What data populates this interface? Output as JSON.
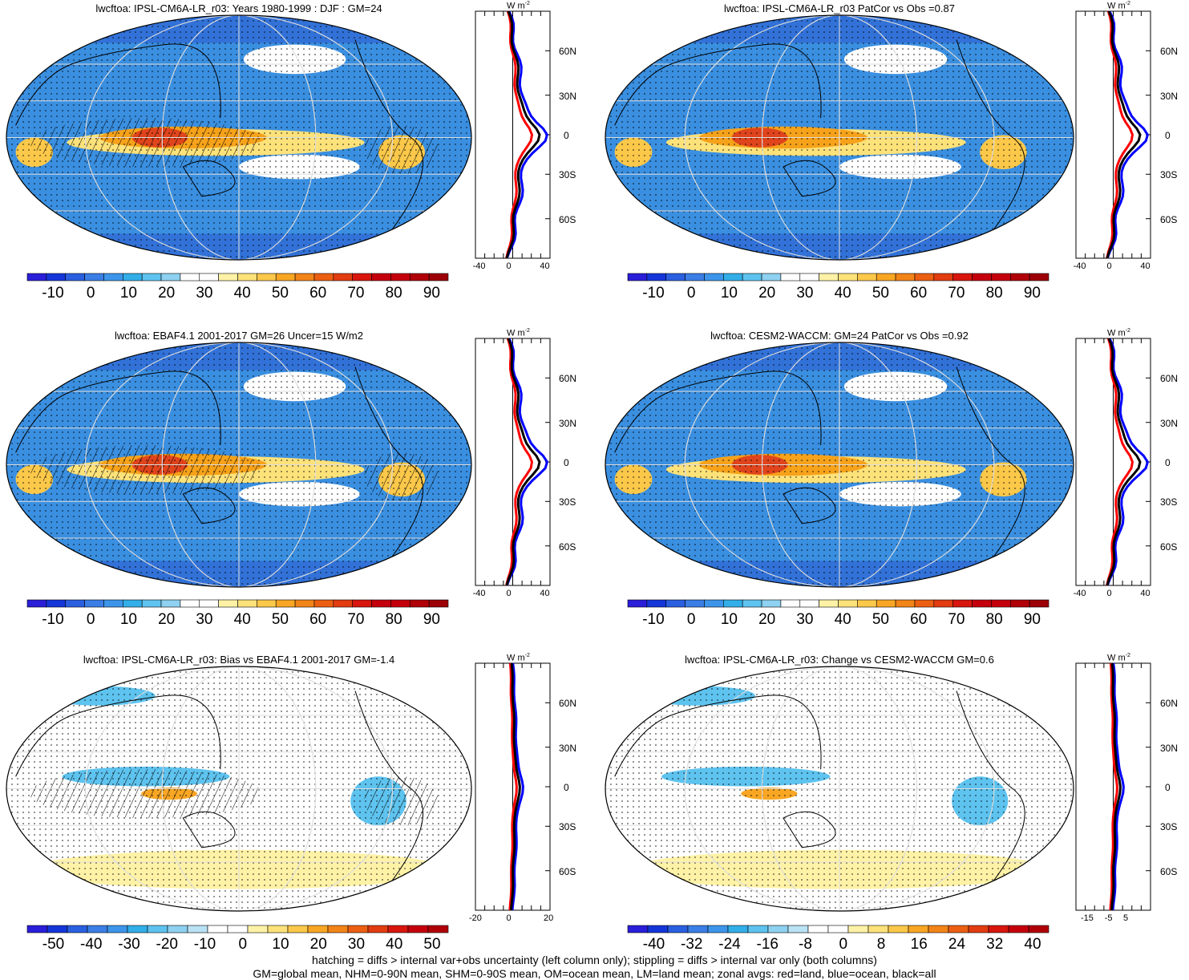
{
  "panels": [
    {
      "title": "lwcftoa: IPSL-CM6A-LR_r03: Years 1980-1999 : DJF : GM=24",
      "colorbar": {
        "labels": [
          "-10",
          "0",
          "10",
          "20",
          "30",
          "40",
          "50",
          "60",
          "70",
          "80",
          "90"
        ]
      },
      "zonal": {
        "unit": "W m",
        "unit_sup": "-2",
        "xticks": [
          "-40",
          "0",
          "40"
        ],
        "lat_labels": [
          "60N",
          "30N",
          "0",
          "30S",
          "60S"
        ]
      },
      "hatching": true
    },
    {
      "title": "lwcftoa: IPSL-CM6A-LR_r03 PatCor vs Obs =0.87",
      "colorbar": {
        "labels": [
          "-10",
          "0",
          "10",
          "20",
          "30",
          "40",
          "50",
          "60",
          "70",
          "80",
          "90"
        ]
      },
      "zonal": {
        "unit": "W m",
        "unit_sup": "-2",
        "xticks": [
          "-40",
          "0",
          "40"
        ],
        "lat_labels": [
          "60N",
          "30N",
          "0",
          "30S",
          "60S"
        ]
      },
      "hatching": false
    },
    {
      "title": "lwcftoa: EBAF4.1 2001-2017 GM=26 Uncer=15 W/m2",
      "colorbar": {
        "labels": [
          "-10",
          "0",
          "10",
          "20",
          "30",
          "40",
          "50",
          "60",
          "70",
          "80",
          "90"
        ]
      },
      "zonal": {
        "unit": "W m",
        "unit_sup": "-2",
        "xticks": [
          "-40",
          "0",
          "40"
        ],
        "lat_labels": [
          "60N",
          "30N",
          "0",
          "30S",
          "60S"
        ]
      },
      "hatching": true
    },
    {
      "title": "lwcftoa: CESM2-WACCM: GM=24 PatCor vs Obs =0.92",
      "colorbar": {
        "labels": [
          "-10",
          "0",
          "10",
          "20",
          "30",
          "40",
          "50",
          "60",
          "70",
          "80",
          "90"
        ]
      },
      "zonal": {
        "unit": "W m",
        "unit_sup": "-2",
        "xticks": [
          "-40",
          "0",
          "40"
        ],
        "lat_labels": [
          "60N",
          "30N",
          "0",
          "30S",
          "60S"
        ]
      },
      "hatching": false
    },
    {
      "title": "lwcftoa: IPSL-CM6A-LR_r03: Bias vs EBAF4.1 2001-2017 GM=-1.4",
      "colorbar": {
        "labels": [
          "-50",
          "-40",
          "-30",
          "-20",
          "-10",
          "0",
          "10",
          "20",
          "30",
          "40",
          "50"
        ]
      },
      "zonal": {
        "unit": "W m",
        "unit_sup": "-2",
        "xticks": [
          "-20",
          "0",
          "20"
        ],
        "lat_labels": [
          "60N",
          "30N",
          "0",
          "30S",
          "60S"
        ]
      },
      "hatching": true
    },
    {
      "title": "lwcftoa: IPSL-CM6A-LR_r03: Change vs CESM2-WACCM GM=0.6",
      "colorbar": {
        "labels": [
          "-40",
          "-32",
          "-24",
          "-16",
          "-8",
          "0",
          "8",
          "16",
          "24",
          "32",
          "40"
        ]
      },
      "zonal": {
        "unit": "W m",
        "unit_sup": "-2",
        "xticks": [
          "-15",
          "-5",
          "5"
        ],
        "lat_labels": [
          "60N",
          "30N",
          "0",
          "30S",
          "60S"
        ]
      },
      "hatching": false
    }
  ],
  "colors": {
    "ocean_field": "#3a8fe0",
    "tropical_high": "#f6a21a",
    "core_high": "#e0441c",
    "land_line": "#ff0000",
    "ocean_line": "#0000ff",
    "all_line": "#000000",
    "palette": [
      "#2a1ed9",
      "#1436d9",
      "#2a5fe0",
      "#3a7ee6",
      "#3c95ea",
      "#32aee8",
      "#5ec3ef",
      "#8ed1f0",
      "#ffffff",
      "#ffffff",
      "#fff2a6",
      "#fde27a",
      "#fbc84a",
      "#f8a624",
      "#f38418",
      "#ec5f12",
      "#e23c10",
      "#d8160e",
      "#c4000c",
      "#c4000c",
      "#b00008",
      "#9c0006"
    ],
    "diff_palette": [
      "#2a1ed9",
      "#1436d9",
      "#2a5fe0",
      "#3a7ee6",
      "#3c95ea",
      "#32aee8",
      "#5ec3ef",
      "#8ed1f0",
      "#b9e2f4",
      "#ffffff",
      "#ffffff",
      "#fff2a6",
      "#fde27a",
      "#fbc84a",
      "#f8a624",
      "#f38418",
      "#ec5f12",
      "#e23c10",
      "#d8160e",
      "#c4000c",
      "#b00008"
    ]
  },
  "footer": {
    "line1": "hatching = diffs > internal var+obs uncertainty (left column only); stippling = diffs > internal var only (both columns)",
    "line2": "GM=global mean, NHM=0-90N mean, SHM=0-90S mean, OM=ocean mean, LM=land mean; zonal avgs: red=land, blue=ocean, black=all"
  }
}
